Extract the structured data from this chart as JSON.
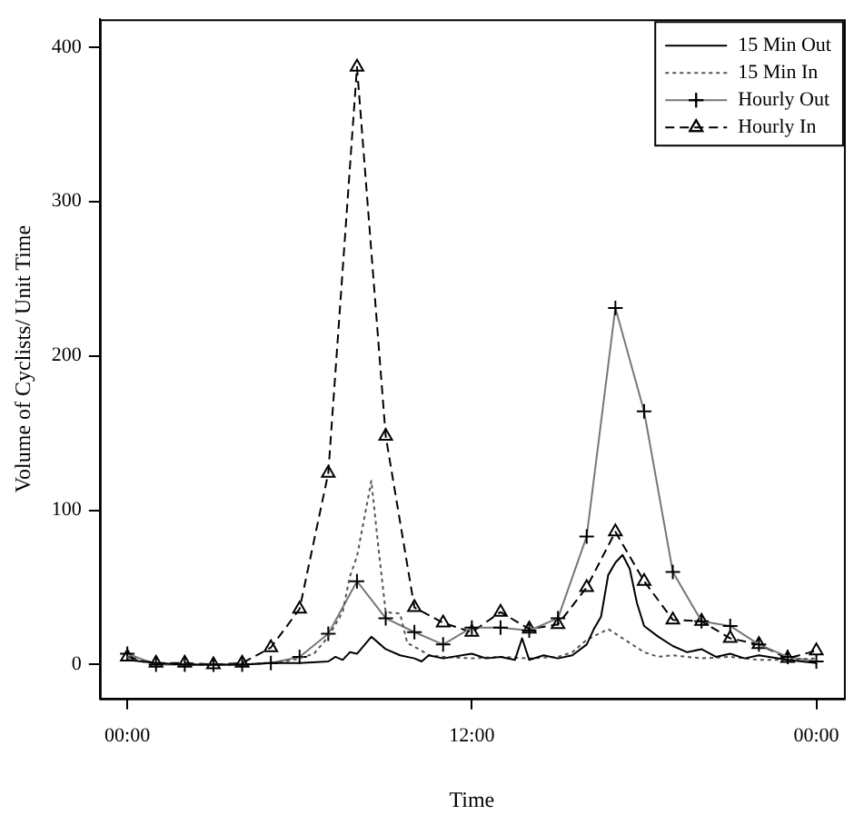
{
  "chart_data": {
    "type": "line",
    "xlabel": "Time",
    "ylabel": "Volume of Cyclists/ Unit Time",
    "xlim": [
      -0.96,
      24.96
    ],
    "xticks": [
      {
        "value": 0,
        "label": "00:00"
      },
      {
        "value": 12,
        "label": "12:00"
      },
      {
        "value": 24,
        "label": "00:00"
      }
    ],
    "ylim": [
      -22,
      418
    ],
    "yticks": [
      0,
      100,
      200,
      300,
      400
    ],
    "grid": false,
    "legend": "top right",
    "series": [
      {
        "name": "15 Min Out",
        "color": "#000000",
        "marker": "none",
        "line_style": "solid",
        "x": [
          0,
          1,
          2,
          3,
          4,
          5,
          6,
          7,
          7.25,
          7.5,
          7.75,
          8,
          8.5,
          8.75,
          9,
          9.5,
          10,
          10.25,
          10.5,
          11,
          12,
          12.5,
          13,
          13.5,
          13.75,
          14,
          14.5,
          15,
          15.5,
          16,
          16.25,
          16.5,
          16.75,
          17,
          17.25,
          17.5,
          17.75,
          18,
          18.5,
          19,
          19.5,
          20,
          20.5,
          21,
          21.5,
          22,
          23,
          24
        ],
        "values": [
          3,
          1,
          0,
          0,
          0,
          1,
          1,
          2,
          5,
          3,
          8,
          7,
          18,
          14,
          10,
          6,
          4,
          2,
          6,
          4,
          7,
          4,
          5,
          3,
          17,
          3,
          6,
          4,
          6,
          13,
          23,
          31,
          58,
          66,
          71,
          62,
          40,
          25,
          18,
          12,
          8,
          10,
          5,
          7,
          4,
          6,
          3,
          1
        ]
      },
      {
        "name": "15 Min In",
        "color": "#555555",
        "marker": "none",
        "line_style": "dotted",
        "x": [
          0,
          0.5,
          1,
          2,
          3,
          4,
          5,
          5.5,
          6,
          6.5,
          7,
          7.5,
          7.75,
          8,
          8.5,
          8.75,
          9,
          9.5,
          9.75,
          10.25,
          10.5,
          11,
          12,
          13,
          14,
          15,
          15.5,
          16,
          16.75,
          17,
          17.5,
          18,
          18.5,
          19,
          20,
          21,
          22,
          23,
          24
        ],
        "values": [
          5,
          2,
          1,
          0,
          0,
          0,
          1,
          2,
          4,
          7,
          18,
          34,
          57,
          70,
          119,
          75,
          34,
          33,
          14,
          9,
          6,
          5,
          4,
          5,
          4,
          5,
          8,
          16,
          23,
          20,
          14,
          8,
          5,
          6,
          4,
          5,
          3,
          3,
          4
        ]
      },
      {
        "name": "Hourly Out",
        "color": "#777777",
        "marker": "cross",
        "line_style": "solid",
        "x": [
          0,
          1,
          2,
          3,
          4,
          5,
          6,
          7,
          8,
          9,
          10,
          11,
          12,
          13,
          14,
          15,
          16,
          17,
          18,
          19,
          20,
          21,
          22,
          23,
          24
        ],
        "values": [
          7,
          0,
          0,
          0,
          0,
          1,
          5,
          20,
          54,
          30,
          21,
          13,
          24,
          24,
          22,
          30,
          83,
          231,
          164,
          60,
          28,
          25,
          13,
          5,
          2
        ]
      },
      {
        "name": "Hourly In",
        "color": "#000000",
        "marker": "triangle",
        "line_style": "dashed",
        "x": [
          0,
          1,
          2,
          3,
          4,
          5,
          6,
          7,
          8,
          9,
          10,
          11,
          12,
          13,
          14,
          15,
          16,
          17,
          18,
          19,
          20,
          21,
          22,
          23,
          24
        ],
        "values": [
          5,
          1,
          1,
          0,
          1,
          11,
          36,
          124,
          387,
          148,
          37,
          27,
          21,
          34,
          23,
          26,
          50,
          86,
          54,
          29,
          28,
          17,
          13,
          4,
          9
        ]
      }
    ]
  }
}
